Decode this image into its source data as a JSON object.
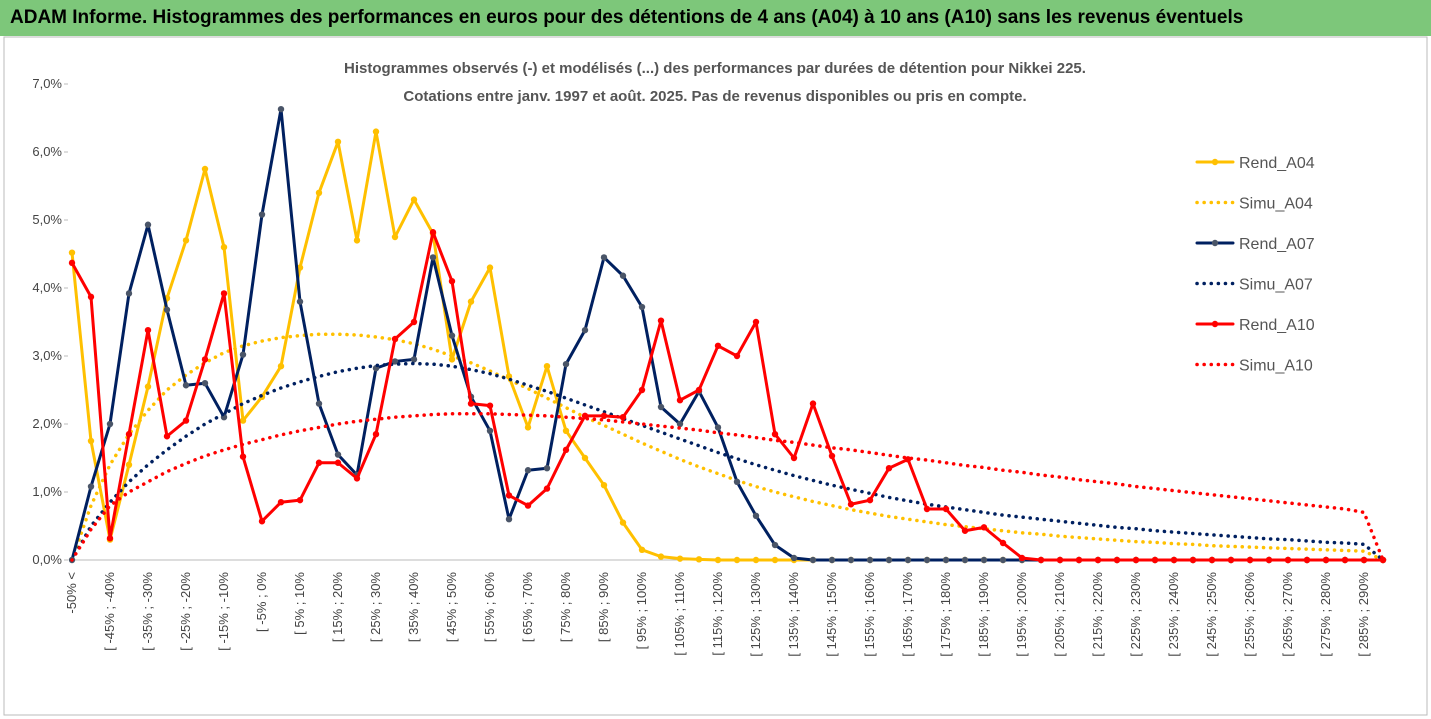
{
  "header": {
    "title": "ADAM Informe. Histogrammes des performances en euros pour des détentions de 4 ans (A04) à 10 ans (A10) sans les revenus éventuels"
  },
  "chart_data": {
    "type": "line",
    "title": "Histogrammes observés (-) et modélisés (...) des performances par durées de détention pour Nikkei 225.",
    "subtitle": "Cotations entre janv. 1997 et août. 2025. Pas de revenus disponibles ou pris en compte.",
    "categories": [
      "-50% <",
      null,
      "[ -45% ; -40%",
      null,
      "[ -35% ; -30%",
      null,
      "[ -25% ; -20%",
      null,
      "[ -15% ; -10%",
      null,
      "[ -5% ; 0%",
      null,
      "[ 5% ; 10%",
      null,
      "[ 15% ; 20%",
      null,
      "[ 25% ; 30%",
      null,
      "[ 35% ; 40%",
      null,
      "[ 45% ; 50%",
      null,
      "[ 55% ; 60%",
      null,
      "[ 65% ; 70%",
      null,
      "[ 75% ; 80%",
      null,
      "[ 85% ; 90%",
      null,
      "[ 95% ; 100%",
      null,
      "[ 105% ; 110%",
      null,
      "[ 115% ; 120%",
      null,
      "[ 125% ; 130%",
      null,
      "[ 135% ; 140%",
      null,
      "[ 145% ; 150%",
      null,
      "[ 155% ; 160%",
      null,
      "[ 165% ; 170%",
      null,
      "[ 175% ; 180%",
      null,
      "[ 185% ; 190%",
      null,
      "[ 195% ; 200%",
      null,
      "[ 205% ; 210%",
      null,
      "[ 215% ; 220%",
      null,
      "[ 225% ; 230%",
      null,
      "[ 235% ; 240%",
      null,
      "[ 245% ; 250%",
      null,
      "[ 255% ; 260%",
      null,
      "[ 265% ; 270%",
      null,
      "[ 275% ; 280%",
      null,
      "[ 285% ; 290%",
      null
    ],
    "series": [
      {
        "name": "Rend_A04",
        "color": "#ffc000",
        "line_style": "solid",
        "markers": true,
        "values": [
          4.52,
          1.75,
          0.3,
          1.4,
          2.55,
          3.85,
          4.7,
          5.75,
          4.6,
          2.05,
          2.4,
          2.85,
          4.3,
          5.4,
          6.15,
          4.7,
          6.3,
          4.75,
          5.3,
          4.8,
          2.95,
          3.8,
          4.3,
          2.7,
          1.95,
          2.85,
          1.9,
          1.5,
          1.1,
          0.55,
          0.15,
          0.05,
          0.02,
          0.01,
          0,
          0,
          0,
          0,
          0,
          0,
          0,
          0,
          0,
          0,
          0,
          0,
          0,
          0,
          0,
          0,
          0,
          0,
          0,
          0,
          0,
          0,
          0,
          0,
          0,
          0,
          0,
          0,
          0,
          0,
          0,
          0,
          0,
          0,
          0,
          0
        ]
      },
      {
        "name": "Simu_A04",
        "color": "#ffc000",
        "line_style": "dotted",
        "markers": false,
        "values": [
          0,
          0.8,
          1.4,
          1.85,
          2.2,
          2.5,
          2.72,
          2.9,
          3.05,
          3.15,
          3.22,
          3.27,
          3.3,
          3.32,
          3.32,
          3.31,
          3.28,
          3.24,
          3.18,
          3.1,
          3.0,
          2.9,
          2.78,
          2.65,
          2.52,
          2.38,
          2.24,
          2.1,
          1.98,
          1.85,
          1.72,
          1.6,
          1.48,
          1.37,
          1.27,
          1.17,
          1.08,
          1.0,
          0.93,
          0.86,
          0.8,
          0.74,
          0.69,
          0.64,
          0.6,
          0.56,
          0.52,
          0.49,
          0.46,
          0.43,
          0.4,
          0.38,
          0.35,
          0.33,
          0.31,
          0.29,
          0.27,
          0.26,
          0.24,
          0.23,
          0.21,
          0.2,
          0.19,
          0.18,
          0.17,
          0.16,
          0.15,
          0.14,
          0.13,
          0
        ]
      },
      {
        "name": "Rend_A07",
        "color": "#002060",
        "line_style": "solid",
        "markers": true,
        "values": [
          0,
          1.08,
          2.0,
          3.92,
          4.93,
          3.68,
          2.57,
          2.6,
          2.1,
          3.02,
          5.08,
          6.63,
          3.8,
          2.3,
          1.55,
          1.25,
          2.82,
          2.92,
          2.95,
          4.45,
          3.3,
          2.4,
          1.9,
          0.6,
          1.32,
          1.35,
          2.88,
          3.38,
          4.45,
          4.18,
          3.72,
          2.25,
          2.0,
          2.48,
          1.95,
          1.15,
          0.65,
          0.22,
          0.03,
          0,
          0,
          0,
          0,
          0,
          0,
          0,
          0,
          0,
          0,
          0,
          0,
          0,
          0,
          0,
          0,
          0,
          0,
          0,
          0,
          0,
          0,
          0,
          0,
          0,
          0,
          0,
          0,
          0,
          0,
          0
        ]
      },
      {
        "name": "Simu_A07",
        "color": "#002060",
        "line_style": "dotted",
        "markers": false,
        "values": [
          0,
          0.5,
          0.85,
          1.15,
          1.4,
          1.62,
          1.82,
          2.0,
          2.15,
          2.3,
          2.42,
          2.53,
          2.62,
          2.7,
          2.77,
          2.82,
          2.86,
          2.88,
          2.89,
          2.88,
          2.85,
          2.8,
          2.74,
          2.66,
          2.57,
          2.48,
          2.38,
          2.28,
          2.18,
          2.08,
          1.98,
          1.88,
          1.78,
          1.68,
          1.58,
          1.49,
          1.4,
          1.32,
          1.24,
          1.17,
          1.1,
          1.04,
          0.98,
          0.92,
          0.87,
          0.82,
          0.78,
          0.74,
          0.7,
          0.66,
          0.63,
          0.6,
          0.57,
          0.54,
          0.51,
          0.48,
          0.46,
          0.43,
          0.41,
          0.39,
          0.37,
          0.35,
          0.33,
          0.31,
          0.3,
          0.28,
          0.26,
          0.25,
          0.23,
          0
        ]
      },
      {
        "name": "Rend_A10",
        "color": "#ff0000",
        "line_style": "solid",
        "markers": true,
        "values": [
          4.37,
          3.87,
          0.32,
          1.85,
          3.38,
          1.82,
          2.05,
          2.95,
          3.92,
          1.52,
          0.57,
          0.85,
          0.88,
          1.43,
          1.43,
          1.2,
          1.85,
          3.25,
          3.5,
          4.82,
          4.1,
          2.3,
          2.27,
          0.95,
          0.8,
          1.05,
          1.62,
          2.12,
          2.12,
          2.1,
          2.5,
          3.52,
          2.35,
          2.5,
          3.15,
          3.0,
          3.5,
          1.85,
          1.5,
          2.3,
          1.53,
          0.82,
          0.88,
          1.35,
          1.48,
          0.75,
          0.75,
          0.43,
          0.48,
          0.25,
          0.03,
          0,
          0,
          0,
          0,
          0,
          0,
          0,
          0,
          0,
          0,
          0,
          0,
          0,
          0,
          0,
          0,
          0,
          0,
          0
        ]
      },
      {
        "name": "Simu_A10",
        "color": "#ff0000",
        "line_style": "dotted",
        "markers": false,
        "values": [
          0,
          0.45,
          0.8,
          1.0,
          1.15,
          1.3,
          1.42,
          1.53,
          1.62,
          1.7,
          1.77,
          1.84,
          1.9,
          1.95,
          2.0,
          2.04,
          2.07,
          2.1,
          2.12,
          2.14,
          2.15,
          2.15,
          2.15,
          2.14,
          2.13,
          2.12,
          2.1,
          2.08,
          2.06,
          2.03,
          2.0,
          1.97,
          1.94,
          1.91,
          1.87,
          1.84,
          1.8,
          1.76,
          1.73,
          1.69,
          1.65,
          1.62,
          1.58,
          1.54,
          1.5,
          1.47,
          1.43,
          1.39,
          1.36,
          1.32,
          1.29,
          1.25,
          1.22,
          1.18,
          1.15,
          1.12,
          1.08,
          1.05,
          1.02,
          0.99,
          0.96,
          0.93,
          0.9,
          0.87,
          0.84,
          0.81,
          0.78,
          0.75,
          0.7,
          0
        ]
      }
    ],
    "ylim": [
      0,
      7
    ],
    "yticks": [
      {
        "value": 0,
        "label": "0,0%"
      },
      {
        "value": 1,
        "label": "1,0%"
      },
      {
        "value": 2,
        "label": "2,0%"
      },
      {
        "value": 3,
        "label": "3,0%"
      },
      {
        "value": 4,
        "label": "4,0%"
      },
      {
        "value": 5,
        "label": "5,0%"
      },
      {
        "value": 6,
        "label": "6,0%"
      },
      {
        "value": 7,
        "label": "7,0%"
      }
    ],
    "legend": "right"
  }
}
